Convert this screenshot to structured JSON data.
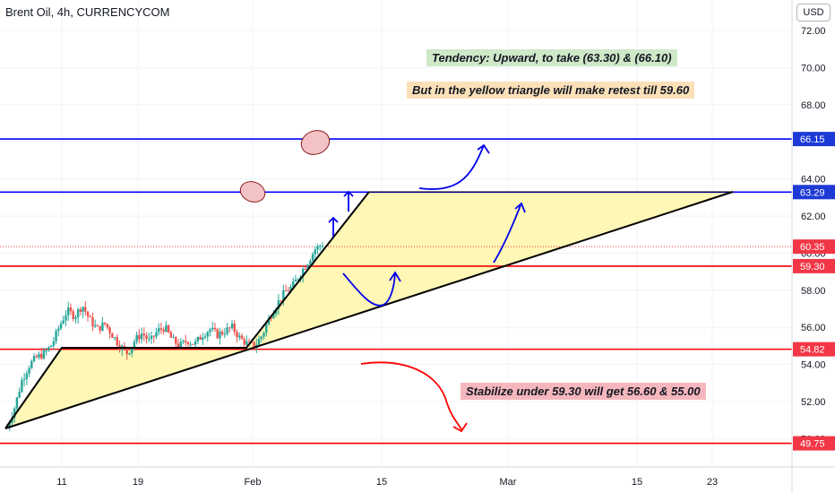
{
  "header": {
    "title": "Brent Oil, 4h, CURRENCYCOM",
    "currency": "USD"
  },
  "notes": {
    "tendency": "Tendency: Upward, to take (63.30) & (66.10)",
    "retest": "But in the yellow triangle will make retest till 59.60",
    "stabilize": "Stabilize under 59.30 will get 56.60 & 55.00"
  },
  "chart_data": {
    "type": "candlestick",
    "title": "Brent Oil, 4h, CURRENCYCOM",
    "x_ticks": [
      "11",
      "19",
      "Feb",
      "15",
      "Mar",
      "15",
      "23"
    ],
    "y_ticks": [
      "72.00",
      "70.00",
      "68.00",
      "66.00",
      "64.00",
      "62.00",
      "60.00",
      "58.00",
      "56.00",
      "54.00",
      "52.00",
      "50.00"
    ],
    "ylim": [
      48.8,
      73.0
    ],
    "grid": true,
    "current_price": "60.35",
    "price_levels": [
      {
        "label": "66.15",
        "value": 66.15,
        "color": "#0000ff"
      },
      {
        "label": "63.29",
        "value": 63.29,
        "color": "#0000ff"
      },
      {
        "label": "60.35",
        "value": 60.35,
        "color": "#f23645"
      },
      {
        "label": "59.30",
        "value": 59.3,
        "color": "#ff0000"
      },
      {
        "label": "54.82",
        "value": 54.82,
        "color": "#ff0000"
      },
      {
        "label": "49.75",
        "value": 49.75,
        "color": "#ff0000"
      }
    ],
    "price_path": [
      [
        50.6,
        1
      ],
      [
        51.7,
        4
      ],
      [
        53.2,
        3
      ],
      [
        54.0,
        4
      ],
      [
        54.4,
        4
      ],
      [
        54.6,
        4
      ],
      [
        55.1,
        5
      ],
      [
        56.1,
        4
      ],
      [
        56.9,
        5
      ],
      [
        56.6,
        4
      ],
      [
        57.2,
        3
      ],
      [
        56.4,
        6
      ],
      [
        55.9,
        5
      ],
      [
        56.2,
        4
      ],
      [
        55.6,
        5
      ],
      [
        55.0,
        3
      ],
      [
        54.6,
        5
      ],
      [
        55.3,
        5
      ],
      [
        55.7,
        6
      ],
      [
        55.2,
        5
      ],
      [
        55.8,
        5
      ],
      [
        56.0,
        4
      ],
      [
        55.3,
        5
      ],
      [
        55.0,
        4
      ],
      [
        55.3,
        4
      ],
      [
        55.1,
        5
      ],
      [
        55.6,
        5
      ],
      [
        55.9,
        4
      ],
      [
        55.6,
        5
      ],
      [
        55.8,
        5
      ],
      [
        56.0,
        4
      ],
      [
        55.4,
        4
      ],
      [
        55.1,
        5
      ],
      [
        55.0,
        4
      ],
      [
        55.6,
        3
      ],
      [
        56.6,
        4
      ],
      [
        57.3,
        5
      ],
      [
        57.9,
        4
      ],
      [
        58.2,
        5
      ],
      [
        58.9,
        5
      ],
      [
        59.5,
        4
      ],
      [
        60.2,
        4
      ],
      [
        60.5,
        3
      ]
    ],
    "colors": {
      "up": "#26a69a",
      "down": "#ef5350",
      "triangle": "#fff6a8",
      "trend": "#000000",
      "arrows": "#0000ee",
      "target_circles": "#f3c2c6"
    }
  }
}
